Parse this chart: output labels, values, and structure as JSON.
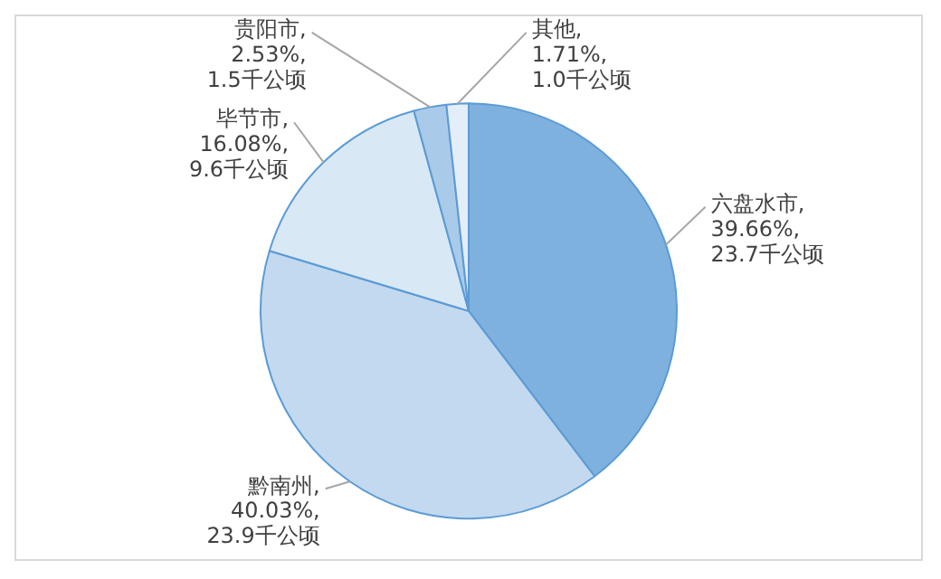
{
  "chart_data": {
    "type": "pie",
    "categories": [
      "六盘水市",
      "黔南州",
      "毕节市",
      "贵阳市",
      "其他"
    ],
    "values": [
      39.66,
      40.03,
      16.08,
      2.53,
      1.71
    ],
    "colors": [
      "#7fb1df",
      "#c2d9ef",
      "#d9e8f5",
      "#a9cbe9",
      "#e3eef8"
    ],
    "value_labels": [
      ",\n39.66%,\n23.7千公顷",
      ",\n40.03%,\n23.9千公顷",
      ",\n16.08%,\n9.6千公顷",
      ",\n2.53%,\n1.5千公顷",
      ",\n1.71%,\n1.0千公顷"
    ],
    "legend": false
  }
}
